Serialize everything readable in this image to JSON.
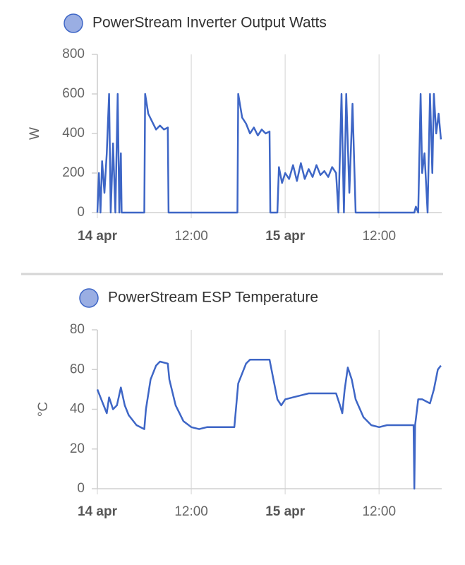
{
  "chart_data": [
    {
      "type": "line",
      "x": [
        0,
        0.2,
        0.4,
        0.6,
        0.9,
        1.2,
        1.5,
        1.7,
        2.0,
        2.3,
        2.6,
        2.8,
        3.0,
        3.1,
        6.0,
        6.1,
        6.5,
        7.0,
        7.5,
        8.0,
        8.5,
        9.0,
        9.1,
        17.9,
        18.0,
        18.5,
        19,
        19.5,
        20,
        20.5,
        21,
        21.5,
        22,
        22.1,
        23.0,
        23.2,
        23.6,
        24,
        24.5,
        25,
        25.5,
        26,
        26.5,
        27,
        27.5,
        28,
        28.5,
        29,
        29.5,
        30,
        30.5,
        30.8,
        31.2,
        31.5,
        31.8,
        32.2,
        32.6,
        33.0,
        40.5,
        40.7,
        41.0,
        41.3,
        41.5,
        41.8,
        42.2,
        42.5,
        42.8,
        43.0,
        43.3,
        43.6,
        43.9
      ],
      "series": [
        {
          "name": "PowerStream Inverter Output Watts",
          "color": "#3e66c6",
          "values": [
            0,
            200,
            0,
            260,
            100,
            300,
            600,
            0,
            350,
            0,
            600,
            0,
            300,
            0,
            0,
            600,
            500,
            460,
            420,
            440,
            420,
            430,
            0,
            0,
            600,
            480,
            450,
            400,
            430,
            390,
            420,
            400,
            410,
            0,
            0,
            230,
            150,
            200,
            170,
            240,
            160,
            250,
            170,
            220,
            180,
            240,
            190,
            210,
            180,
            230,
            200,
            0,
            600,
            0,
            600,
            100,
            550,
            0,
            0,
            30,
            0,
            600,
            200,
            300,
            0,
            600,
            200,
            600,
            400,
            500,
            370
          ]
        }
      ],
      "ylabel": "W",
      "xlim": [
        0,
        44
      ],
      "ylim": [
        0,
        800
      ],
      "xticks": [
        {
          "value": 0,
          "label": "14 apr"
        },
        {
          "value": 12,
          "label": "12:00"
        },
        {
          "value": 24,
          "label": "15 apr"
        },
        {
          "value": 36,
          "label": "12:00"
        }
      ],
      "yticks": [
        0,
        200,
        400,
        600,
        800
      ],
      "grid": "x"
    },
    {
      "type": "line",
      "x": [
        0,
        0.5,
        1.0,
        1.2,
        1.5,
        2.0,
        2.5,
        3.0,
        3.5,
        4,
        5,
        6,
        6.2,
        6.8,
        7.5,
        8,
        9,
        9.2,
        10,
        11,
        12,
        13,
        14,
        16,
        17.5,
        18,
        19,
        19.5,
        21,
        22,
        22.5,
        23,
        23.5,
        24,
        25,
        26,
        27,
        29,
        30.5,
        31,
        31.3,
        31.6,
        32,
        32.5,
        33,
        34,
        35,
        36,
        37,
        40.4,
        40.5,
        40.6,
        41.0,
        41.5,
        42.5,
        43,
        43.5,
        43.9
      ],
      "series": [
        {
          "name": "PowerStream ESP Temperature",
          "color": "#3e66c6",
          "values": [
            50,
            45,
            40,
            38,
            46,
            40,
            42,
            51,
            42,
            37,
            32,
            30,
            40,
            55,
            62,
            64,
            63,
            55,
            42,
            34,
            31,
            30,
            31,
            31,
            31,
            53,
            63,
            65,
            65,
            65,
            55,
            45,
            42,
            45,
            46,
            47,
            48,
            48,
            48,
            42,
            38,
            50,
            61,
            55,
            45,
            36,
            32,
            31,
            32,
            32,
            0,
            32,
            45,
            45,
            43,
            50,
            60,
            62
          ]
        }
      ],
      "ylabel": "°C",
      "xlim": [
        0,
        44
      ],
      "ylim": [
        0,
        80
      ],
      "xticks": [
        {
          "value": 0,
          "label": "14 apr"
        },
        {
          "value": 12,
          "label": "12:00"
        },
        {
          "value": 24,
          "label": "15 apr"
        },
        {
          "value": 36,
          "label": "12:00"
        }
      ],
      "yticks": [
        0,
        20,
        40,
        60,
        80
      ],
      "grid": "x"
    }
  ]
}
